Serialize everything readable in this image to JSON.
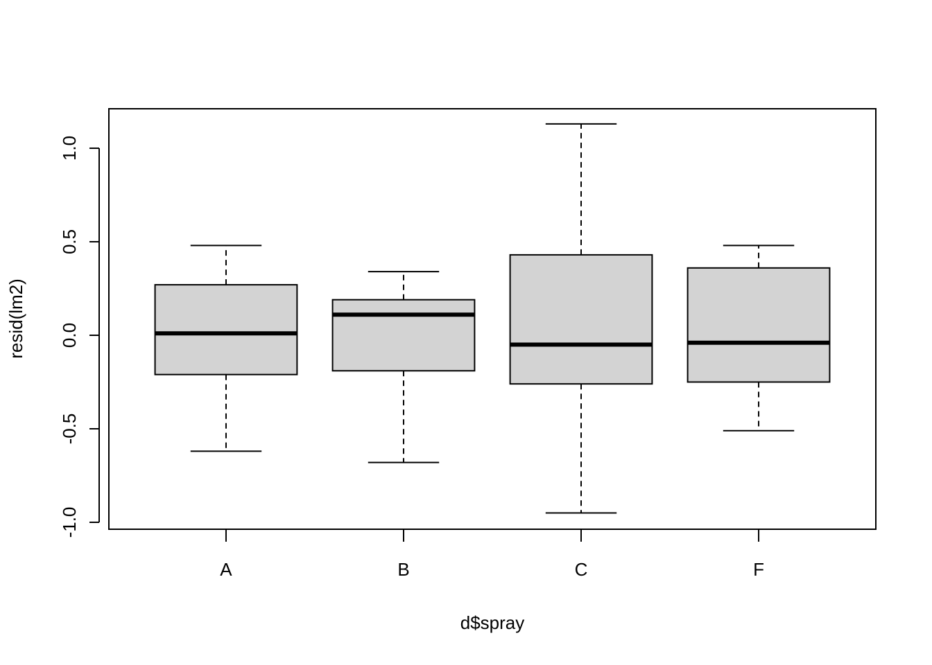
{
  "chart_data": {
    "type": "boxplot",
    "x_label": "d$spray",
    "y_label": "resid(lm2)",
    "categories": [
      "A",
      "B",
      "C",
      "F"
    ],
    "boxes": [
      {
        "min": -0.62,
        "q1": -0.21,
        "median": 0.01,
        "q3": 0.27,
        "max": 0.48
      },
      {
        "min": -0.68,
        "q1": -0.19,
        "median": 0.11,
        "q3": 0.19,
        "max": 0.34
      },
      {
        "min": -0.95,
        "q1": -0.26,
        "median": -0.05,
        "q3": 0.43,
        "max": 1.13
      },
      {
        "min": -0.51,
        "q1": -0.25,
        "median": -0.04,
        "q3": 0.36,
        "max": 0.48
      }
    ],
    "color": "#d3d3d3",
    "ylim": [
      -1.037,
      1.211
    ],
    "yticks": [
      {
        "value": -1,
        "label": "-1.0"
      },
      -0.5,
      {
        "value": 0,
        "label": "0.0"
      },
      0.5,
      {
        "value": 1,
        "label": "1.0"
      }
    ]
  }
}
